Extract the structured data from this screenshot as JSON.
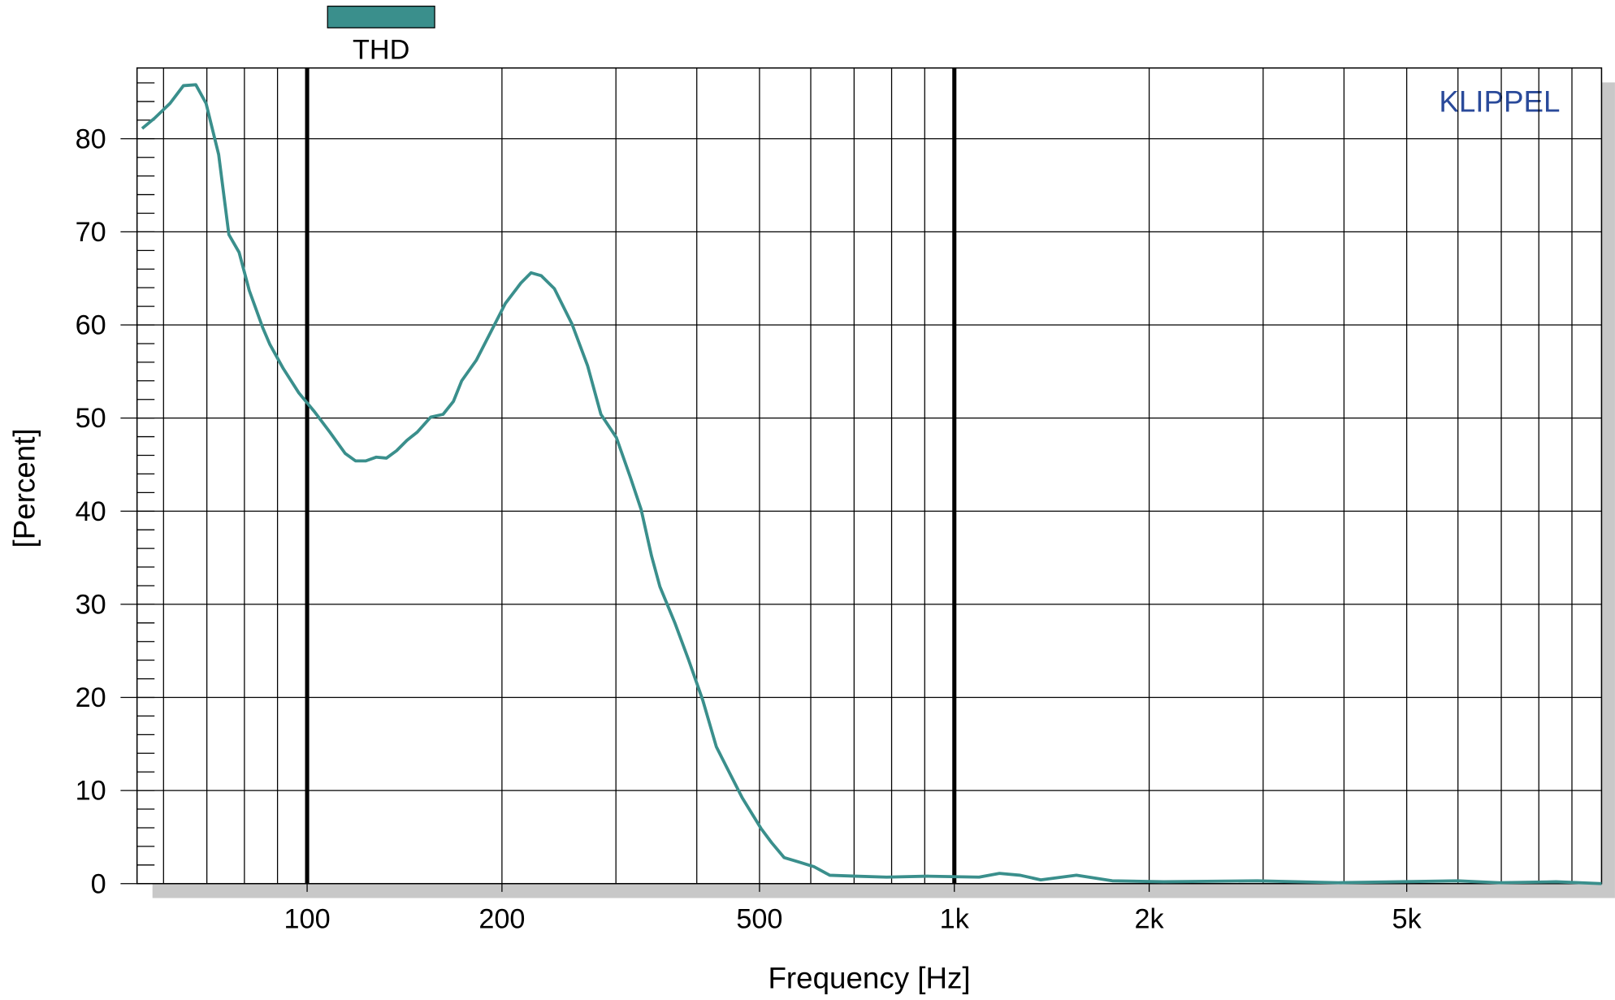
{
  "chart_data": {
    "type": "line",
    "title": "KLIPPEL",
    "xlabel": "Frequency [Hz]",
    "ylabel": "[Percent]",
    "xscale": "log",
    "xlim": [
      54.6,
      10000
    ],
    "ylim": [
      0,
      87.6
    ],
    "xticks": [
      100,
      200,
      500,
      {
        "value": 1000,
        "label": "1k"
      },
      {
        "value": 2000,
        "label": "2k"
      },
      {
        "value": 5000,
        "label": "5k"
      }
    ],
    "x_grid": [
      60,
      70,
      80,
      90,
      100,
      200,
      300,
      400,
      500,
      600,
      700,
      800,
      900,
      1000,
      2000,
      3000,
      4000,
      5000,
      6000,
      7000,
      8000,
      9000
    ],
    "x_bold_lines": [
      100,
      1000
    ],
    "yticks": [
      0,
      10,
      20,
      30,
      40,
      50,
      60,
      70,
      80
    ],
    "y_minor_ticks": [
      2,
      4,
      6,
      8,
      12,
      14,
      16,
      18,
      22,
      24,
      26,
      28,
      32,
      34,
      36,
      38,
      42,
      44,
      46,
      48,
      52,
      54,
      56,
      58,
      62,
      64,
      66,
      68,
      72,
      74,
      76,
      78,
      82,
      84,
      86
    ],
    "grid": true,
    "x": [
      55.6,
      58.1,
      61.4,
      64.4,
      67.3,
      69.8,
      73.0,
      75.7,
      78.5,
      81.4,
      85.4,
      87.6,
      91.9,
      97.1,
      102.6,
      108.4,
      114.5,
      118.8,
      123.2,
      127.8,
      132.6,
      137.5,
      142.6,
      148.0,
      155.2,
      162.2,
      168.3,
      173.3,
      182.5,
      191.4,
      202.4,
      213.9,
      221.8,
      229.9,
      241.0,
      256.6,
      271.3,
      284.4,
      300.5,
      316.3,
      328.1,
      340.5,
      350.8,
      370.0,
      388.2,
      408.6,
      428.8,
      444.9,
      470.3,
      503.0,
      522.0,
      545.7,
      576.9,
      607.7,
      642.0,
      703.8,
      785.8,
      909.5,
      1092,
      1174,
      1264,
      1360,
      1544,
      1754,
      2106,
      2936,
      3920,
      5993,
      6937,
      8505,
      10000
    ],
    "series": [
      {
        "name": "THD",
        "color": "#3a8f8c",
        "values": [
          81.1,
          82.2,
          83.8,
          85.7,
          85.8,
          83.8,
          78.3,
          69.7,
          67.8,
          63.7,
          59.7,
          57.9,
          55.3,
          52.7,
          50.7,
          48.5,
          46.2,
          45.4,
          45.4,
          45.8,
          45.7,
          46.5,
          47.6,
          48.5,
          50.1,
          50.4,
          51.8,
          54.0,
          56.2,
          59.0,
          62.3,
          64.5,
          65.6,
          65.3,
          63.9,
          60.1,
          55.6,
          50.4,
          47.9,
          43.5,
          40.2,
          35.2,
          31.9,
          28.0,
          24.1,
          19.7,
          14.7,
          12.5,
          9.2,
          5.9,
          4.4,
          2.8,
          2.3,
          1.8,
          0.9,
          0.8,
          0.7,
          0.8,
          0.7,
          1.1,
          0.9,
          0.4,
          0.9,
          0.3,
          0.2,
          0.3,
          0.1,
          0.3,
          0.1,
          0.2,
          0
        ]
      }
    ]
  }
}
